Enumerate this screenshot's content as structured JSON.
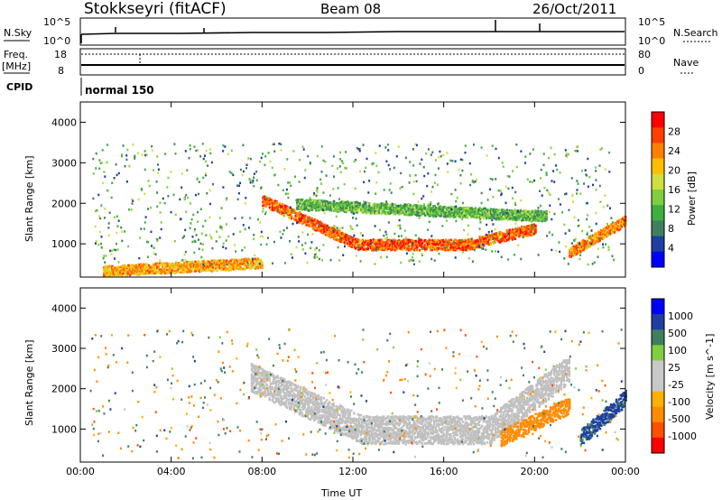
{
  "header": {
    "station": "Stokkseyri (fitACF)",
    "beam": "Beam 08",
    "date": "26/Oct/2011"
  },
  "top_panels": {
    "nsky_label": "N.Sky",
    "nsky_ticks": [
      "10^5",
      "10^0"
    ],
    "nsearch_label": "N.Search",
    "nsearch_ticks": [
      "10^5",
      "10^0"
    ],
    "freq_label": "Freq.",
    "freq_unit": "[MHz]",
    "freq_ticks": [
      "18",
      "8"
    ],
    "nave_label": "Nave",
    "nave_ticks": [
      "80",
      "0"
    ],
    "cpid_label": "CPID",
    "cpid_value": "normal 150"
  },
  "colors": {
    "power_scale": [
      "#0000ff",
      "#1f3fa0",
      "#3f7f5f",
      "#3faf3f",
      "#7fcf3f",
      "#cfdf3f",
      "#ffbf00",
      "#ff7f00",
      "#ff3f00",
      "#ff0000"
    ],
    "velocity_scale": [
      "#ff0000",
      "#ff5000",
      "#ff8c00",
      "#ffb000",
      "#c8c8c8",
      "#c8c8c8",
      "#7fcf3f",
      "#3f7f5f",
      "#1f3fa0",
      "#0000ff"
    ],
    "ground_scatter": "#c0c0c0"
  },
  "chart_data": [
    {
      "type": "heatmap",
      "title": "",
      "xlabel": "Time UT",
      "ylabel": "Slant Range [km]",
      "x_ticks": [
        "00:00",
        "04:00",
        "08:00",
        "12:00",
        "16:00",
        "20:00",
        "00:00"
      ],
      "x_range_hours": [
        0,
        24
      ],
      "y_ticks": [
        1000,
        2000,
        3000,
        4000
      ],
      "ylim": [
        180,
        4500
      ],
      "colorbar": {
        "label": "Power [dB]",
        "ticks": [
          4,
          8,
          12,
          16,
          20,
          24,
          28
        ],
        "range": [
          0,
          32
        ]
      },
      "features": [
        {
          "name": "main band",
          "start_h": 8.0,
          "end_h": 20.0,
          "range_start_km": 2100,
          "range_mid_km": 1000,
          "range_end_km": 1400,
          "value": 26
        },
        {
          "name": "upper band",
          "start_h": 9.5,
          "end_h": 20.5,
          "range_start_km": 2000,
          "range_end_km": 1700,
          "value": 12
        },
        {
          "name": "morning near range",
          "start_h": 1.0,
          "end_h": 8.0,
          "range_start_km": 350,
          "range_end_km": 550,
          "value": 22
        },
        {
          "name": "late evening patch",
          "start_h": 21.5,
          "end_h": 24.0,
          "range_start_km": 800,
          "range_end_km": 1600,
          "value": 24
        }
      ]
    },
    {
      "type": "heatmap",
      "title": "",
      "xlabel": "Time UT",
      "ylabel": "Slant Range [km]",
      "x_ticks": [
        "00:00",
        "04:00",
        "08:00",
        "12:00",
        "16:00",
        "20:00",
        "00:00"
      ],
      "x_range_hours": [
        0,
        24
      ],
      "y_ticks": [
        1000,
        2000,
        3000,
        4000
      ],
      "ylim": [
        180,
        4500
      ],
      "colorbar": {
        "label": "Velocity [m s^-1]",
        "ticks": [
          1000,
          500,
          100,
          25,
          -25,
          -100,
          -500,
          -1000
        ]
      },
      "features": [
        {
          "name": "ground scatter arc",
          "start_h": 7.5,
          "end_h": 21.5,
          "range_start_km": 2300,
          "range_mid_km": 1000,
          "range_end_km": 2500,
          "value": 0
        },
        {
          "name": "evening flow",
          "start_h": 18.5,
          "end_h": 21.5,
          "range_start_km": 800,
          "range_end_km": 1600,
          "value": -300
        },
        {
          "name": "late evening flow",
          "start_h": 22.0,
          "end_h": 24.0,
          "range_start_km": 800,
          "range_end_km": 1800,
          "value": 600
        }
      ]
    }
  ]
}
